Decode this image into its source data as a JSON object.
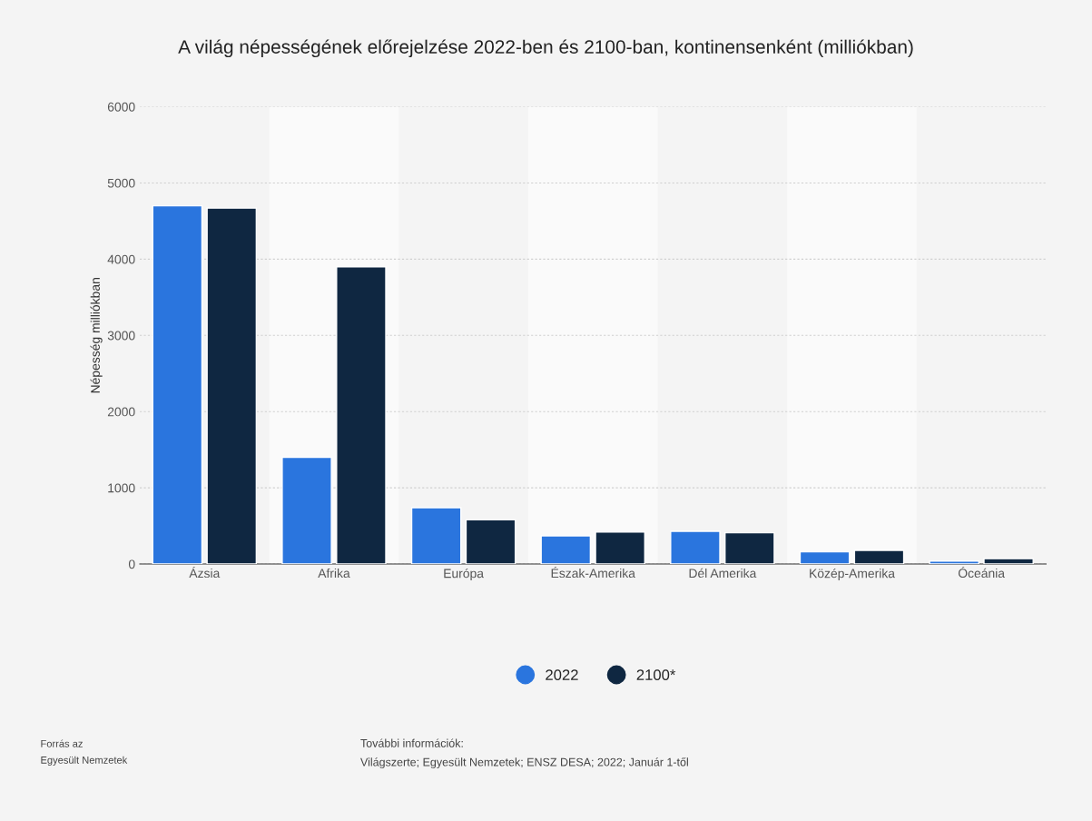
{
  "chart_data": {
    "type": "bar",
    "title": "A világ népességének előrejelzése 2022-ben és 2100-ban, kontinensenként (milliókban)",
    "ylabel": "Népesség milliókban",
    "categories": [
      "Ázsia",
      "Afrika",
      "Európa",
      "Észak-Amerika",
      "Dél Amerika",
      "Közép-Amerika",
      "Óceánia"
    ],
    "series": [
      {
        "name": "2022",
        "color": "#2a75de",
        "values": [
          4700,
          1400,
          740,
          370,
          430,
          160,
          40
        ]
      },
      {
        "name": "2100*",
        "color": "#0f2741",
        "values": [
          4670,
          3900,
          580,
          420,
          410,
          180,
          70
        ]
      }
    ],
    "ylim": [
      0,
      6000
    ],
    "yticks": [
      0,
      1000,
      2000,
      3000,
      4000,
      5000,
      6000
    ],
    "grid": "y",
    "legend": "bottom",
    "annotations": [
      "Forrás az",
      "Egyesült Nemzetek",
      "További információk:",
      "Világszerte; Egyesült Nemzetek; ENSZ DESA; 2022; Január 1-től"
    ]
  }
}
